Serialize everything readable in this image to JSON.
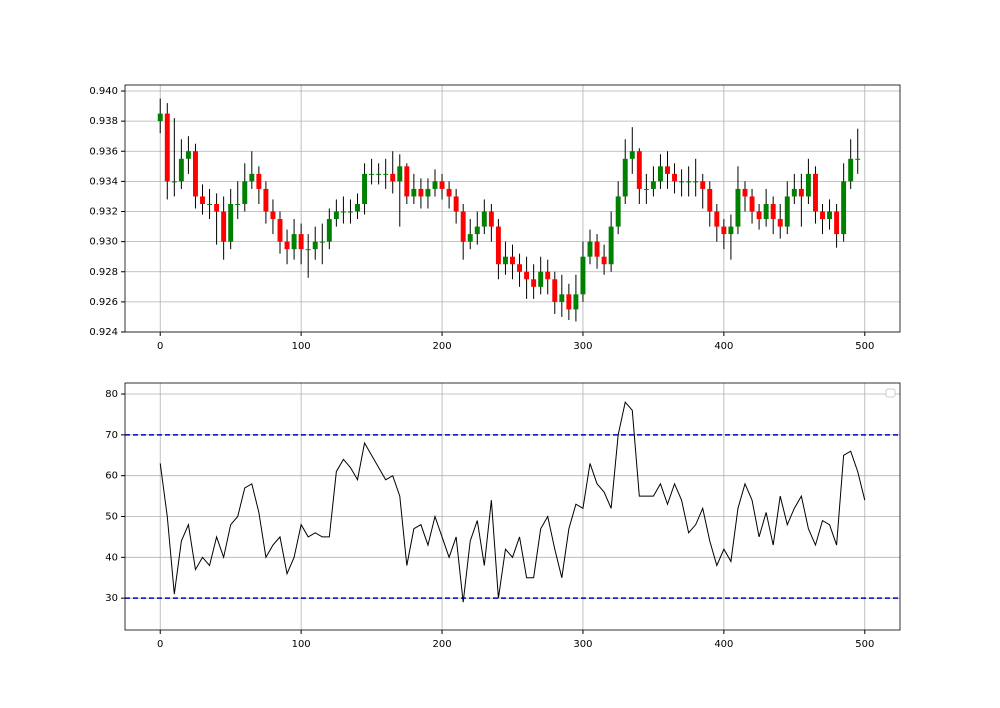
{
  "chart_data": [
    {
      "type": "candlestick",
      "x": [
        0,
        5,
        10,
        15,
        20,
        25,
        30,
        35,
        40,
        45,
        50,
        55,
        60,
        65,
        70,
        75,
        80,
        85,
        90,
        95,
        100,
        105,
        110,
        115,
        120,
        125,
        130,
        135,
        140,
        145,
        150,
        155,
        160,
        165,
        170,
        175,
        180,
        185,
        190,
        195,
        200,
        205,
        210,
        215,
        220,
        225,
        230,
        235,
        240,
        245,
        250,
        255,
        260,
        265,
        270,
        275,
        280,
        285,
        290,
        295,
        300,
        305,
        310,
        315,
        320,
        325,
        330,
        335,
        340,
        345,
        350,
        355,
        360,
        365,
        370,
        375,
        380,
        385,
        390,
        395,
        400,
        405,
        410,
        415,
        420,
        425,
        430,
        435,
        440,
        445,
        450,
        455,
        460,
        465,
        470,
        475,
        480,
        485,
        490,
        495
      ],
      "open": [
        0.938,
        0.9385,
        0.934,
        0.934,
        0.9355,
        0.936,
        0.933,
        0.9325,
        0.9325,
        0.932,
        0.93,
        0.9325,
        0.9325,
        0.934,
        0.9345,
        0.9335,
        0.932,
        0.9315,
        0.93,
        0.9295,
        0.9305,
        0.9295,
        0.9295,
        0.93,
        0.93,
        0.9315,
        0.932,
        0.932,
        0.932,
        0.9325,
        0.9345,
        0.9345,
        0.9345,
        0.9345,
        0.934,
        0.935,
        0.933,
        0.9335,
        0.933,
        0.9335,
        0.934,
        0.9335,
        0.933,
        0.932,
        0.93,
        0.9305,
        0.931,
        0.932,
        0.931,
        0.9285,
        0.929,
        0.9285,
        0.928,
        0.9275,
        0.927,
        0.928,
        0.9275,
        0.926,
        0.9265,
        0.9255,
        0.9265,
        0.929,
        0.93,
        0.929,
        0.9285,
        0.931,
        0.933,
        0.9355,
        0.936,
        0.9335,
        0.9335,
        0.934,
        0.935,
        0.9345,
        0.934,
        0.934,
        0.934,
        0.934,
        0.9335,
        0.932,
        0.931,
        0.9305,
        0.931,
        0.9335,
        0.933,
        0.932,
        0.9315,
        0.9325,
        0.9315,
        0.931,
        0.933,
        0.9335,
        0.933,
        0.9345,
        0.932,
        0.9315,
        0.932,
        0.9305,
        0.934,
        0.9355
      ],
      "high": [
        0.9395,
        0.9392,
        0.9382,
        0.9368,
        0.937,
        0.9365,
        0.9338,
        0.9335,
        0.9332,
        0.933,
        0.9335,
        0.934,
        0.9352,
        0.936,
        0.935,
        0.934,
        0.9328,
        0.932,
        0.9308,
        0.9315,
        0.9312,
        0.9305,
        0.931,
        0.9312,
        0.9322,
        0.9328,
        0.933,
        0.9328,
        0.9332,
        0.9352,
        0.9355,
        0.9352,
        0.9355,
        0.936,
        0.9358,
        0.9352,
        0.9345,
        0.9342,
        0.9342,
        0.9348,
        0.9345,
        0.934,
        0.9335,
        0.9325,
        0.9315,
        0.932,
        0.9328,
        0.9325,
        0.9315,
        0.93,
        0.9298,
        0.9292,
        0.929,
        0.9285,
        0.929,
        0.9288,
        0.928,
        0.9278,
        0.9272,
        0.9278,
        0.93,
        0.9308,
        0.9305,
        0.9298,
        0.932,
        0.934,
        0.9368,
        0.9376,
        0.9362,
        0.9345,
        0.935,
        0.9358,
        0.936,
        0.9352,
        0.9348,
        0.935,
        0.9355,
        0.9345,
        0.934,
        0.9325,
        0.9315,
        0.9318,
        0.935,
        0.934,
        0.9335,
        0.9325,
        0.9335,
        0.933,
        0.9325,
        0.934,
        0.9345,
        0.9345,
        0.9355,
        0.935,
        0.9325,
        0.9328,
        0.9325,
        0.9352,
        0.9368,
        0.9375
      ],
      "low": [
        0.9372,
        0.9328,
        0.933,
        0.9335,
        0.9345,
        0.9322,
        0.9318,
        0.9315,
        0.9298,
        0.9288,
        0.9295,
        0.9315,
        0.932,
        0.9335,
        0.9325,
        0.9312,
        0.9305,
        0.9292,
        0.9285,
        0.9288,
        0.9285,
        0.9276,
        0.9288,
        0.9285,
        0.9295,
        0.931,
        0.9312,
        0.9312,
        0.9315,
        0.9318,
        0.9338,
        0.9338,
        0.9335,
        0.9332,
        0.931,
        0.9325,
        0.9325,
        0.9322,
        0.9322,
        0.933,
        0.9328,
        0.9322,
        0.9312,
        0.9288,
        0.9295,
        0.9298,
        0.9305,
        0.93,
        0.9275,
        0.9278,
        0.9275,
        0.927,
        0.9262,
        0.9262,
        0.9265,
        0.9265,
        0.9252,
        0.925,
        0.9248,
        0.9247,
        0.926,
        0.9285,
        0.9282,
        0.9278,
        0.928,
        0.9305,
        0.9325,
        0.9345,
        0.9325,
        0.9325,
        0.933,
        0.9335,
        0.9335,
        0.9332,
        0.933,
        0.933,
        0.933,
        0.9322,
        0.931,
        0.93,
        0.9295,
        0.9288,
        0.9305,
        0.932,
        0.9312,
        0.9308,
        0.931,
        0.9305,
        0.9302,
        0.9305,
        0.9325,
        0.931,
        0.9325,
        0.9312,
        0.9305,
        0.9308,
        0.9296,
        0.93,
        0.9335,
        0.9345
      ],
      "close": [
        0.9385,
        0.934,
        0.934,
        0.9355,
        0.936,
        0.933,
        0.9325,
        0.9325,
        0.932,
        0.93,
        0.9325,
        0.9325,
        0.934,
        0.9345,
        0.9335,
        0.932,
        0.9315,
        0.93,
        0.9295,
        0.9305,
        0.9295,
        0.9295,
        0.93,
        0.93,
        0.9315,
        0.932,
        0.932,
        0.932,
        0.9325,
        0.9345,
        0.9345,
        0.9345,
        0.9345,
        0.934,
        0.935,
        0.933,
        0.9335,
        0.933,
        0.9335,
        0.934,
        0.9335,
        0.933,
        0.932,
        0.93,
        0.9305,
        0.931,
        0.932,
        0.931,
        0.9285,
        0.929,
        0.9285,
        0.928,
        0.9275,
        0.927,
        0.928,
        0.9275,
        0.926,
        0.9265,
        0.9255,
        0.9265,
        0.929,
        0.93,
        0.929,
        0.9285,
        0.931,
        0.933,
        0.9355,
        0.936,
        0.9335,
        0.9335,
        0.934,
        0.935,
        0.9345,
        0.934,
        0.934,
        0.934,
        0.934,
        0.9335,
        0.932,
        0.931,
        0.9305,
        0.931,
        0.9335,
        0.933,
        0.932,
        0.9315,
        0.9325,
        0.9315,
        0.931,
        0.933,
        0.9335,
        0.933,
        0.9345,
        0.932,
        0.9315,
        0.932,
        0.9305,
        0.934,
        0.9355,
        0.9355
      ],
      "up_color": "#008000",
      "down_color": "#ff0000",
      "wick_color": "#000000",
      "xlim": [
        -25,
        525
      ],
      "xticks": [
        0,
        100,
        200,
        300,
        400,
        500
      ],
      "ylim": [
        0.924,
        0.9404
      ],
      "yticks": [
        {
          "value": 0.924,
          "label": "0.924"
        },
        {
          "value": 0.926,
          "label": "0.926"
        },
        {
          "value": 0.928,
          "label": "0.928"
        },
        {
          "value": 0.93,
          "label": "0.930"
        },
        {
          "value": 0.932,
          "label": "0.932"
        },
        {
          "value": 0.934,
          "label": "0.934"
        },
        {
          "value": 0.936,
          "label": "0.936"
        },
        {
          "value": 0.938,
          "label": "0.938"
        },
        {
          "value": 0.94,
          "label": "0.940"
        }
      ],
      "grid": true
    },
    {
      "type": "line",
      "x": [
        0,
        5,
        10,
        15,
        20,
        25,
        30,
        35,
        40,
        45,
        50,
        55,
        60,
        65,
        70,
        75,
        80,
        85,
        90,
        95,
        100,
        105,
        110,
        115,
        120,
        125,
        130,
        135,
        140,
        145,
        150,
        155,
        160,
        165,
        170,
        175,
        180,
        185,
        190,
        195,
        200,
        205,
        210,
        215,
        220,
        225,
        230,
        235,
        240,
        245,
        250,
        255,
        260,
        265,
        270,
        275,
        280,
        285,
        290,
        295,
        300,
        305,
        310,
        315,
        320,
        325,
        330,
        335,
        340,
        345,
        350,
        355,
        360,
        365,
        370,
        375,
        380,
        385,
        390,
        395,
        400,
        405,
        410,
        415,
        420,
        425,
        430,
        435,
        440,
        445,
        450,
        455,
        460,
        465,
        470,
        475,
        480,
        485,
        490,
        495,
        500
      ],
      "values": [
        63,
        50,
        31,
        44,
        48,
        37,
        40,
        38,
        45,
        40,
        48,
        50,
        57,
        58,
        51,
        40,
        43,
        45,
        36,
        40,
        48,
        45,
        46,
        45,
        45,
        61,
        64,
        62,
        59,
        68,
        65,
        62,
        59,
        60,
        55,
        38,
        47,
        48,
        43,
        50,
        45,
        40,
        45,
        29,
        44,
        49,
        38,
        54,
        30,
        42,
        40,
        45,
        35,
        35,
        47,
        50,
        42,
        35,
        47,
        53,
        52,
        63,
        58,
        56,
        52,
        70,
        78,
        76,
        55,
        55,
        55,
        58,
        53,
        58,
        54,
        46,
        48,
        52,
        44,
        38,
        42,
        39,
        52,
        58,
        54,
        45,
        51,
        43,
        55,
        48,
        52,
        55,
        47,
        43,
        49,
        48,
        43,
        65,
        66,
        61,
        54
      ],
      "color": "#000000",
      "hlines": [
        30,
        70
      ],
      "hline_color": "#0000cc",
      "xlim": [
        -25,
        525
      ],
      "xticks": [
        0,
        100,
        200,
        300,
        400,
        500
      ],
      "ylim": [
        22.2,
        82.7
      ],
      "yticks": [
        30,
        40,
        50,
        60,
        70,
        80
      ],
      "grid": true,
      "legend": "upper right"
    }
  ]
}
